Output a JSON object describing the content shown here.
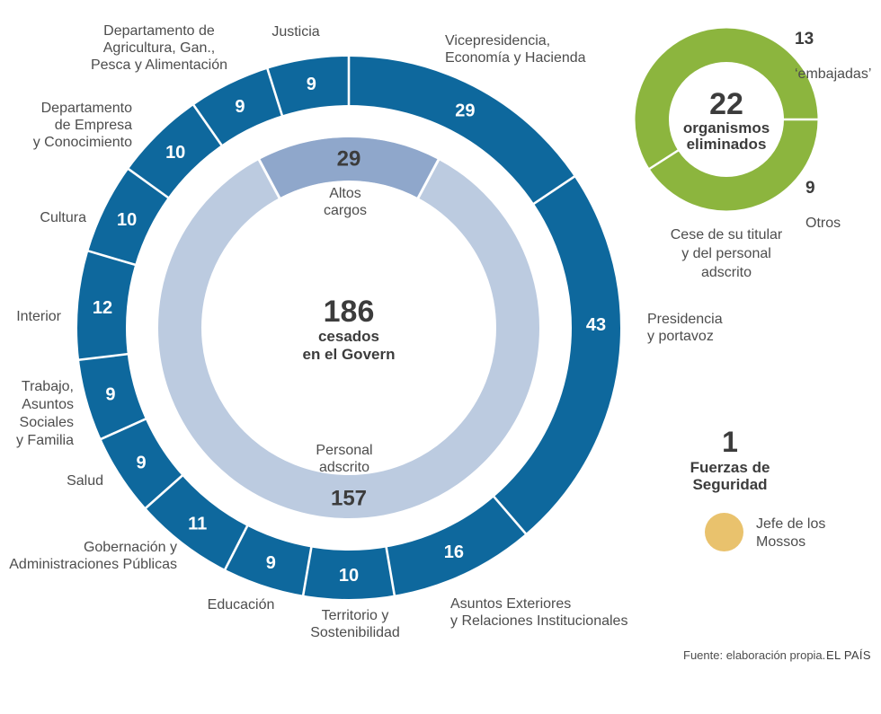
{
  "colors": {
    "ring_main": "#0e689d",
    "ring_altos": "#8fa7cb",
    "ring_personal": "#bccbe0",
    "ring_green": "#8cb53e",
    "mossos_circle": "#e9c26d",
    "number_on_ring": "#ffffff",
    "dark_text": "#3c3c3c",
    "label_text": "#4d4d4d",
    "separator": "#ffffff"
  },
  "chart_data": [
    {
      "id": "govern_donut",
      "type": "donut",
      "title": "186 cesados en el Govern",
      "total": 186,
      "center_value": "186",
      "center_label": "cesados\nen el Govern",
      "legend_position": "around",
      "segments": [
        {
          "label": "Vicepresidencia,\nEconomía y Hacienda",
          "value": 29
        },
        {
          "label": "Presidencia\ny portavoz",
          "value": 43
        },
        {
          "label": "Asuntos Exteriores\ny Relaciones Institucionales",
          "value": 16
        },
        {
          "label": "Territorio y\nSostenibilidad",
          "value": 10
        },
        {
          "label": "Educación",
          "value": 9
        },
        {
          "label": "Gobernación y\nAdministraciones Públicas",
          "value": 11
        },
        {
          "label": "Salud",
          "value": 9
        },
        {
          "label": "Trabajo,\nAsuntos\nSociales\ny Familia",
          "value": 9
        },
        {
          "label": "Interior",
          "value": 12
        },
        {
          "label": "Cultura",
          "value": 10
        },
        {
          "label": "Departamento\nde Empresa\ny Conocimiento",
          "value": 10
        },
        {
          "label": "Departamento de\nAgricultura, Gan.,\nPesca y Alimentación",
          "value": 9
        },
        {
          "label": "Justicia",
          "value": 9
        }
      ],
      "inner_ring": {
        "total": 186,
        "segments": [
          {
            "label": "Altos\ncargos",
            "value": 29
          },
          {
            "label": "Personal\nadscrito",
            "value": 157
          }
        ]
      }
    },
    {
      "id": "organismos_donut",
      "type": "donut",
      "total": 22,
      "center_value": "22",
      "center_label": "organismos\neliminados",
      "note": "Cese de su titular\ny del personal\nadscrito",
      "segments": [
        {
          "label": "‘embajadas’",
          "value": 13
        },
        {
          "label": "Otros",
          "value": 9
        }
      ]
    },
    {
      "id": "fuerzas_seguridad",
      "type": "single",
      "value": "1",
      "label": "Fuerzas de\nSeguridad",
      "item": "Jefe de los\nMossos"
    }
  ],
  "footer": {
    "source": "Fuente: elaboración propia.",
    "brand": "EL PAÍS"
  }
}
